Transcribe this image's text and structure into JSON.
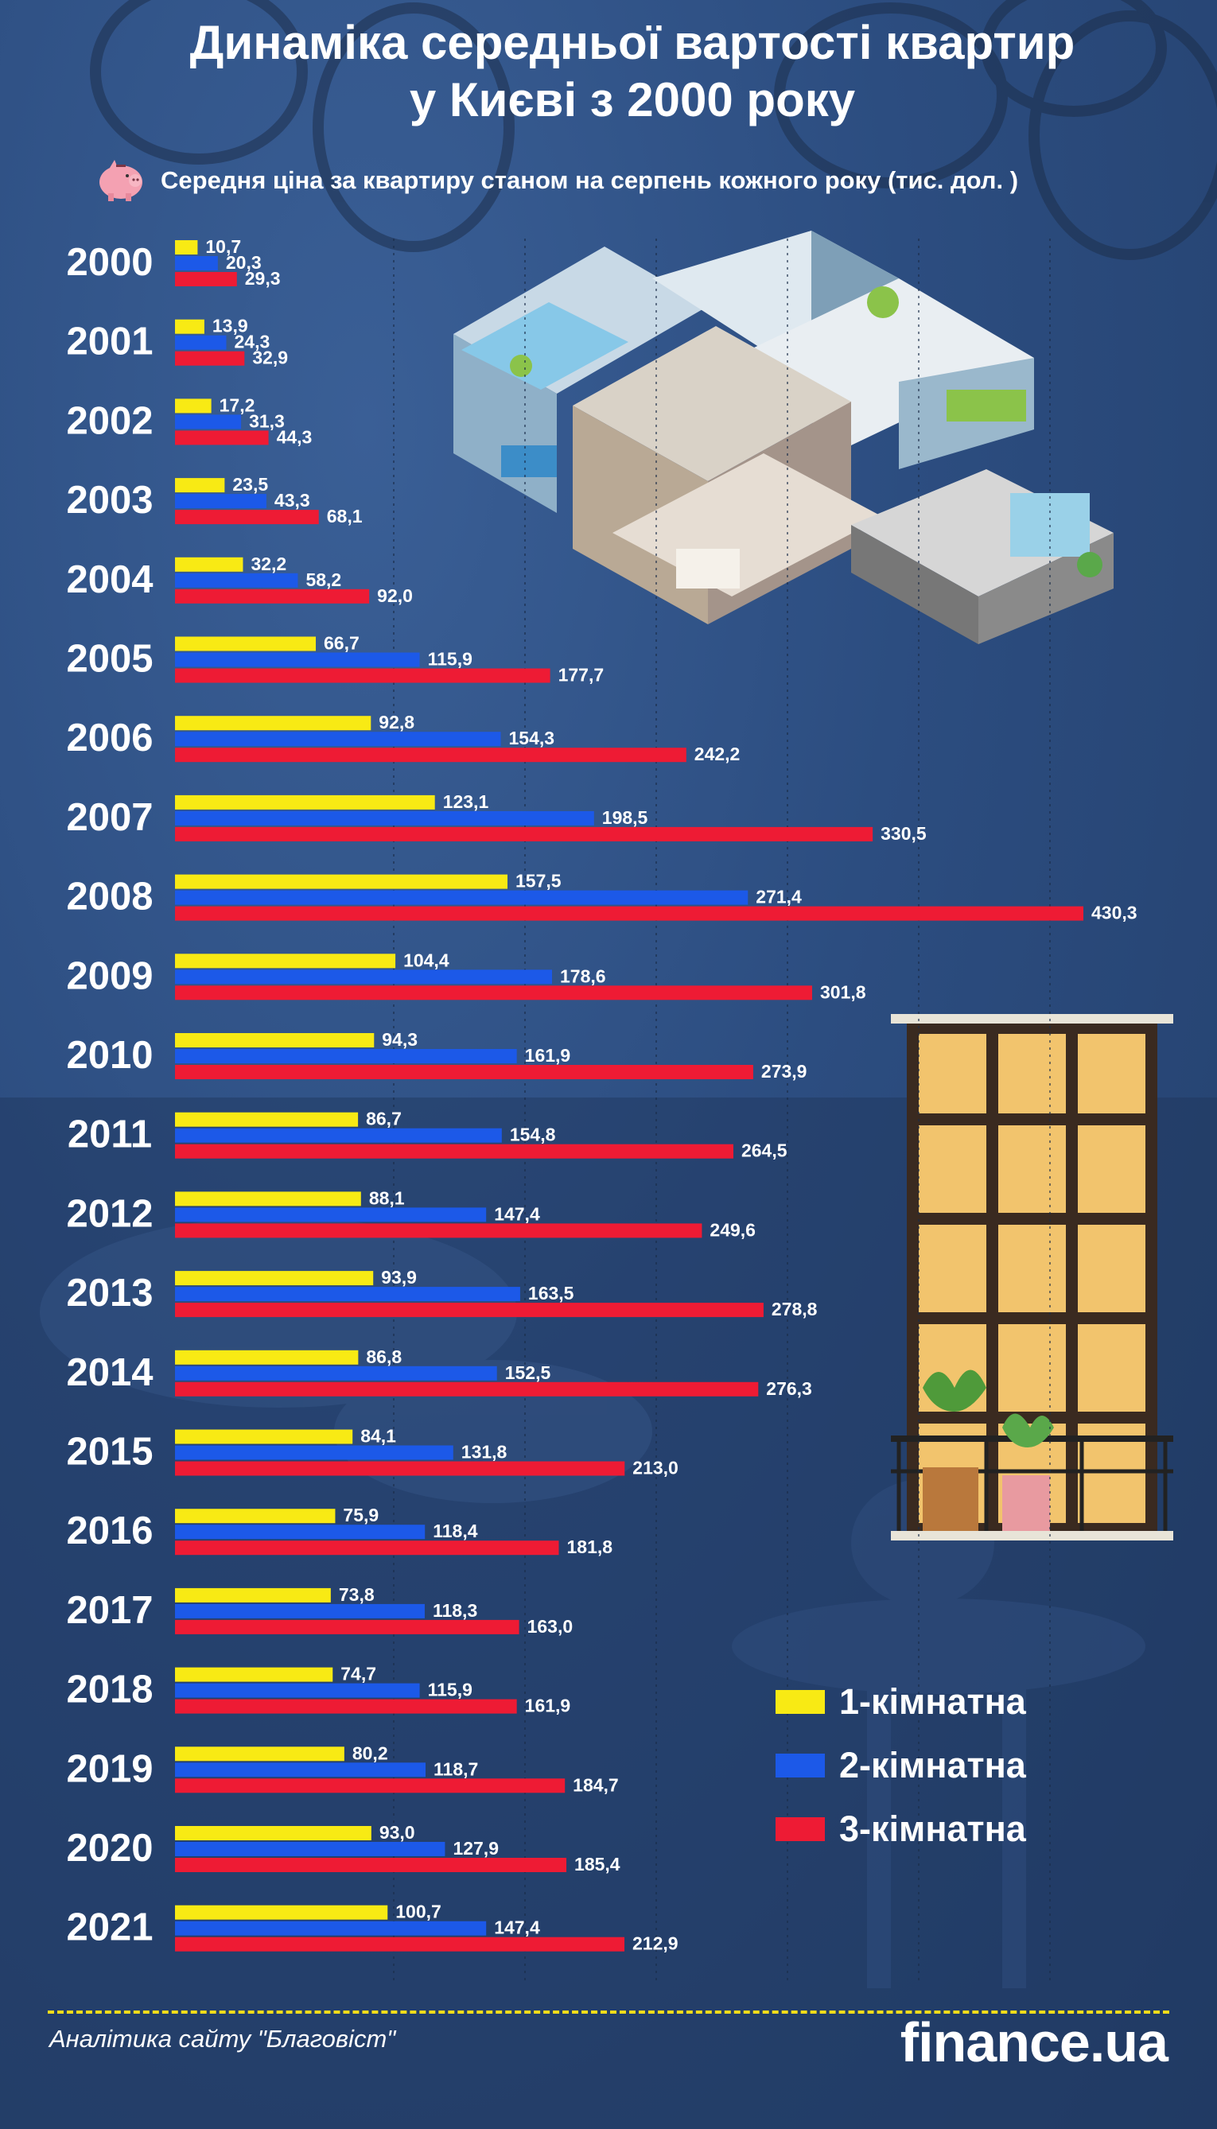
{
  "header": {
    "title_line1": "Динаміка середньої вартості квартир",
    "title_line2": "у Києві з 2000 року",
    "subtitle": "Середня ціна за квартиру станом на серпень кожного року (тис. дол. )"
  },
  "legend": {
    "items": [
      {
        "label": "1-кімнатна",
        "color": "#f8ea14"
      },
      {
        "label": "2-кімнатна",
        "color": "#1c59e8"
      },
      {
        "label": "3-кімнатна",
        "color": "#ee1b34"
      }
    ]
  },
  "footer": {
    "source": "Аналітика сайту \"Благовіст\"",
    "brand": "finance.ua"
  },
  "icons": [
    "piggy-bank-icon",
    "apartment-illustration",
    "window-illustration"
  ],
  "chart_data": {
    "type": "bar",
    "orientation": "horizontal",
    "categories": [
      "2000",
      "2001",
      "2002",
      "2003",
      "2004",
      "2005",
      "2006",
      "2007",
      "2008",
      "2009",
      "2010",
      "2011",
      "2012",
      "2013",
      "2014",
      "2015",
      "2016",
      "2017",
      "2018",
      "2019",
      "2020",
      "2021"
    ],
    "series": [
      {
        "name": "1-кімнатна",
        "color": "#f8ea14",
        "values": [
          10.7,
          13.9,
          17.2,
          23.5,
          32.2,
          66.7,
          92.8,
          123.1,
          157.5,
          104.4,
          94.3,
          86.7,
          88.1,
          93.9,
          86.8,
          84.1,
          75.9,
          73.8,
          74.7,
          80.2,
          93.0,
          100.7
        ],
        "labels": [
          "10,7",
          "13,9",
          "17,2",
          "23,5",
          "32,2",
          "66,7",
          "92,8",
          "123,1",
          "157,5",
          "104,4",
          "94,3",
          "86,7",
          "88,1",
          "93,9",
          "86,8",
          "84,1",
          "75,9",
          "73,8",
          "74,7",
          "80,2",
          "93,0",
          "100,7"
        ]
      },
      {
        "name": "2-кімнатна",
        "color": "#1c59e8",
        "values": [
          20.3,
          24.3,
          31.3,
          43.3,
          58.2,
          115.9,
          154.3,
          198.5,
          271.4,
          178.6,
          161.9,
          154.8,
          147.4,
          163.5,
          152.5,
          131.8,
          118.4,
          118.3,
          115.9,
          118.7,
          127.9,
          147.4
        ],
        "labels": [
          "20,3",
          "24,3",
          "31,3",
          "43,3",
          "58,2",
          "115,9",
          "154,3",
          "198,5",
          "271,4",
          "178,6",
          "161,9",
          "154,8",
          "147,4",
          "163,5",
          "152,5",
          "131,8",
          "118,4",
          "118,3",
          "115,9",
          "118,7",
          "127,9",
          "147,4"
        ]
      },
      {
        "name": "3-кімнатна",
        "color": "#ee1b34",
        "values": [
          29.3,
          32.9,
          44.3,
          68.1,
          92.0,
          177.7,
          242.2,
          330.5,
          430.3,
          301.8,
          273.9,
          264.5,
          249.6,
          278.8,
          276.3,
          213.0,
          181.8,
          163.0,
          161.9,
          184.7,
          185.4,
          212.9
        ],
        "labels": [
          "29,3",
          "32,9",
          "44,3",
          "68,1",
          "92,0",
          "177,7",
          "242,2",
          "330,5",
          "430,3",
          "301,8",
          "273,9",
          "264,5",
          "249,6",
          "278,8",
          "276,3",
          "213,0",
          "181,8",
          "163,0",
          "161,9",
          "184,7",
          "185,4",
          "212,9"
        ]
      }
    ],
    "title": "Динаміка середньої вартості квартир у Києві з 2000 року",
    "subtitle": "Середня ціна за квартиру станом на серпень кожного року (тис. дол. )",
    "xlim": [
      0,
      430.3
    ],
    "grid": true,
    "legend_position": "bottom-right"
  }
}
